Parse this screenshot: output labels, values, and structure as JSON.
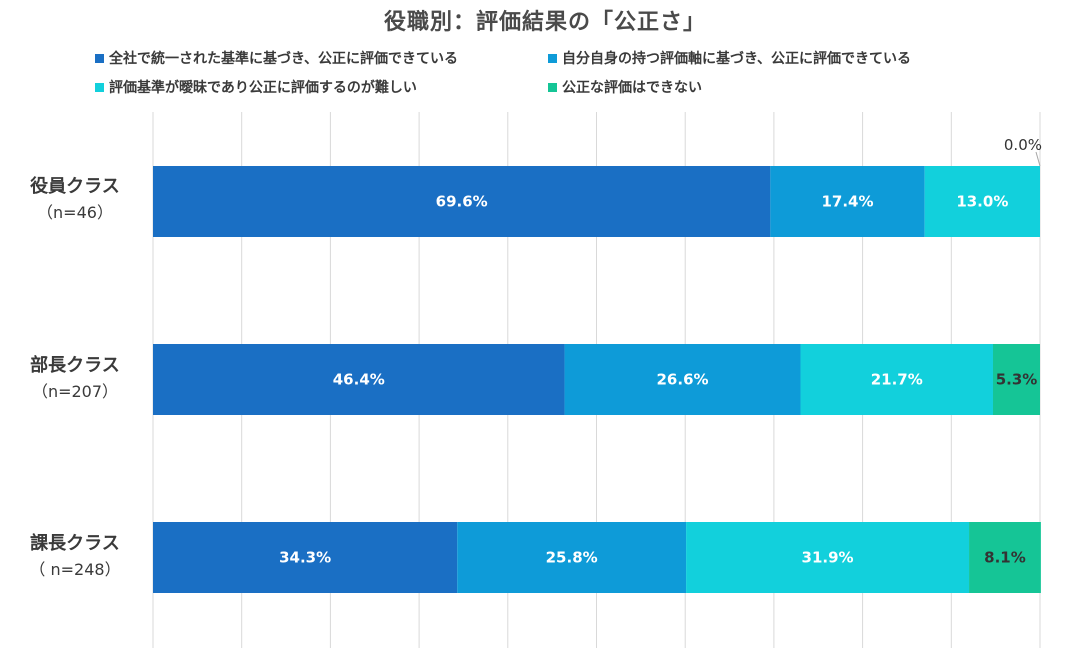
{
  "chart_data": {
    "type": "bar",
    "orientation": "horizontal",
    "stacked": true,
    "percent": true,
    "title": "役職別：評価結果の「公正さ」",
    "categories": [
      {
        "name": "役員クラス",
        "n": "（n=46）"
      },
      {
        "name": "部長クラス",
        "n": "（n=207）"
      },
      {
        "name": "課長クラス",
        "n": "（ n=248）"
      }
    ],
    "series": [
      {
        "name": "全社で統一された基準に基づき、公正に評価できている",
        "color": "#1a6fc4",
        "values": [
          69.6,
          46.4,
          34.3
        ],
        "labels": [
          "69.6%",
          "46.4%",
          "34.3%"
        ]
      },
      {
        "name": "自分自身の持つ評価軸に基づき、公正に評価できている",
        "color": "#0e9bd8",
        "values": [
          17.4,
          26.6,
          25.8
        ],
        "labels": [
          "17.4%",
          "26.6%",
          "25.8%"
        ]
      },
      {
        "name": "評価基準が曖昧であり公正に評価するのが難しい",
        "color": "#12d0dc",
        "values": [
          13.0,
          21.7,
          31.9
        ],
        "labels": [
          "13.0%",
          "21.7%",
          "31.9%"
        ]
      },
      {
        "name": "公正な評価はできない",
        "color": "#15c596",
        "values": [
          0.0,
          5.3,
          8.1
        ],
        "labels": [
          "0.0%",
          "5.3%",
          "8.1%"
        ]
      }
    ],
    "xlim": [
      0,
      100
    ],
    "grid": true,
    "legend_position": "top"
  }
}
